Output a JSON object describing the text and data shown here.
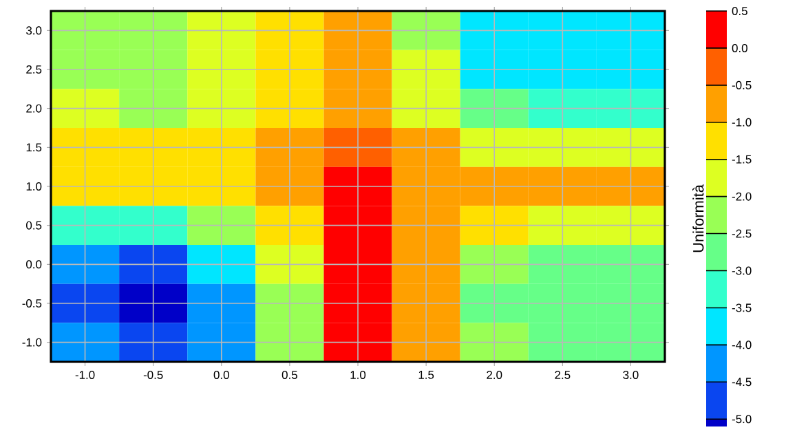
{
  "chart_data": {
    "type": "heatmap",
    "clabel": "Uniformità",
    "categories": [
      "-1.0",
      "-0.5",
      "0.0",
      "0.5",
      "1.0",
      "1.5",
      "2.0",
      "2.5",
      "3.0"
    ],
    "y_categories": [
      "3.0",
      "2.5",
      "2.0",
      "1.5",
      "1.0",
      "0.5",
      "0.0",
      "-0.5",
      "-1.0"
    ],
    "cells": [
      [
        -2.3,
        -2.4,
        -1.8,
        -1.2,
        -0.8,
        -2.2,
        -3.6,
        -3.8,
        -3.6
      ],
      [
        -2.3,
        -2.3,
        -1.8,
        -1.2,
        -0.8,
        -2.0,
        -3.6,
        -3.9,
        -3.7
      ],
      [
        -1.9,
        -2.1,
        -1.7,
        -1.2,
        -0.8,
        -1.7,
        -3.0,
        -3.4,
        -3.2
      ],
      [
        -1.4,
        -1.4,
        -1.3,
        -1.0,
        -0.4,
        -0.9,
        -1.6,
        -1.8,
        -1.8
      ],
      [
        -1.2,
        -1.2,
        -1.2,
        -0.9,
        0.1,
        -0.6,
        -0.9,
        -0.9,
        -0.9
      ],
      [
        -3.2,
        -3.1,
        -2.5,
        -1.4,
        0.3,
        -0.6,
        -1.4,
        -1.7,
        -1.6
      ],
      [
        -4.4,
        -4.6,
        -3.9,
        -2.0,
        0.3,
        -0.8,
        -2.2,
        -2.8,
        -2.6
      ],
      [
        -4.6,
        -5.1,
        -4.5,
        -2.3,
        0.3,
        -0.9,
        -2.6,
        -3.0,
        -2.8
      ],
      [
        -4.3,
        -4.6,
        -4.3,
        -2.3,
        0.3,
        -1.0,
        -2.5,
        -2.8,
        -2.6
      ]
    ],
    "clim": [
      -5.1,
      0.5
    ],
    "cticks": [
      {
        "value": -5.0,
        "label": "-5.0"
      },
      {
        "value": -4.5,
        "label": "-4.5"
      },
      {
        "value": -4.0,
        "label": "-4.0"
      },
      {
        "value": -3.5,
        "label": "-3.5"
      },
      {
        "value": -3.0,
        "label": "-3.0"
      },
      {
        "value": -2.5,
        "label": "-2.5"
      },
      {
        "value": -2.0,
        "label": "-2.0"
      },
      {
        "value": -1.5,
        "label": "-1.5"
      },
      {
        "value": -1.0,
        "label": "-1.0"
      },
      {
        "value": -0.5,
        "label": "-0.5"
      },
      {
        "value": 0.0,
        "label": "0.0"
      },
      {
        "value": 0.5,
        "label": "0.5"
      }
    ],
    "grid": true
  }
}
